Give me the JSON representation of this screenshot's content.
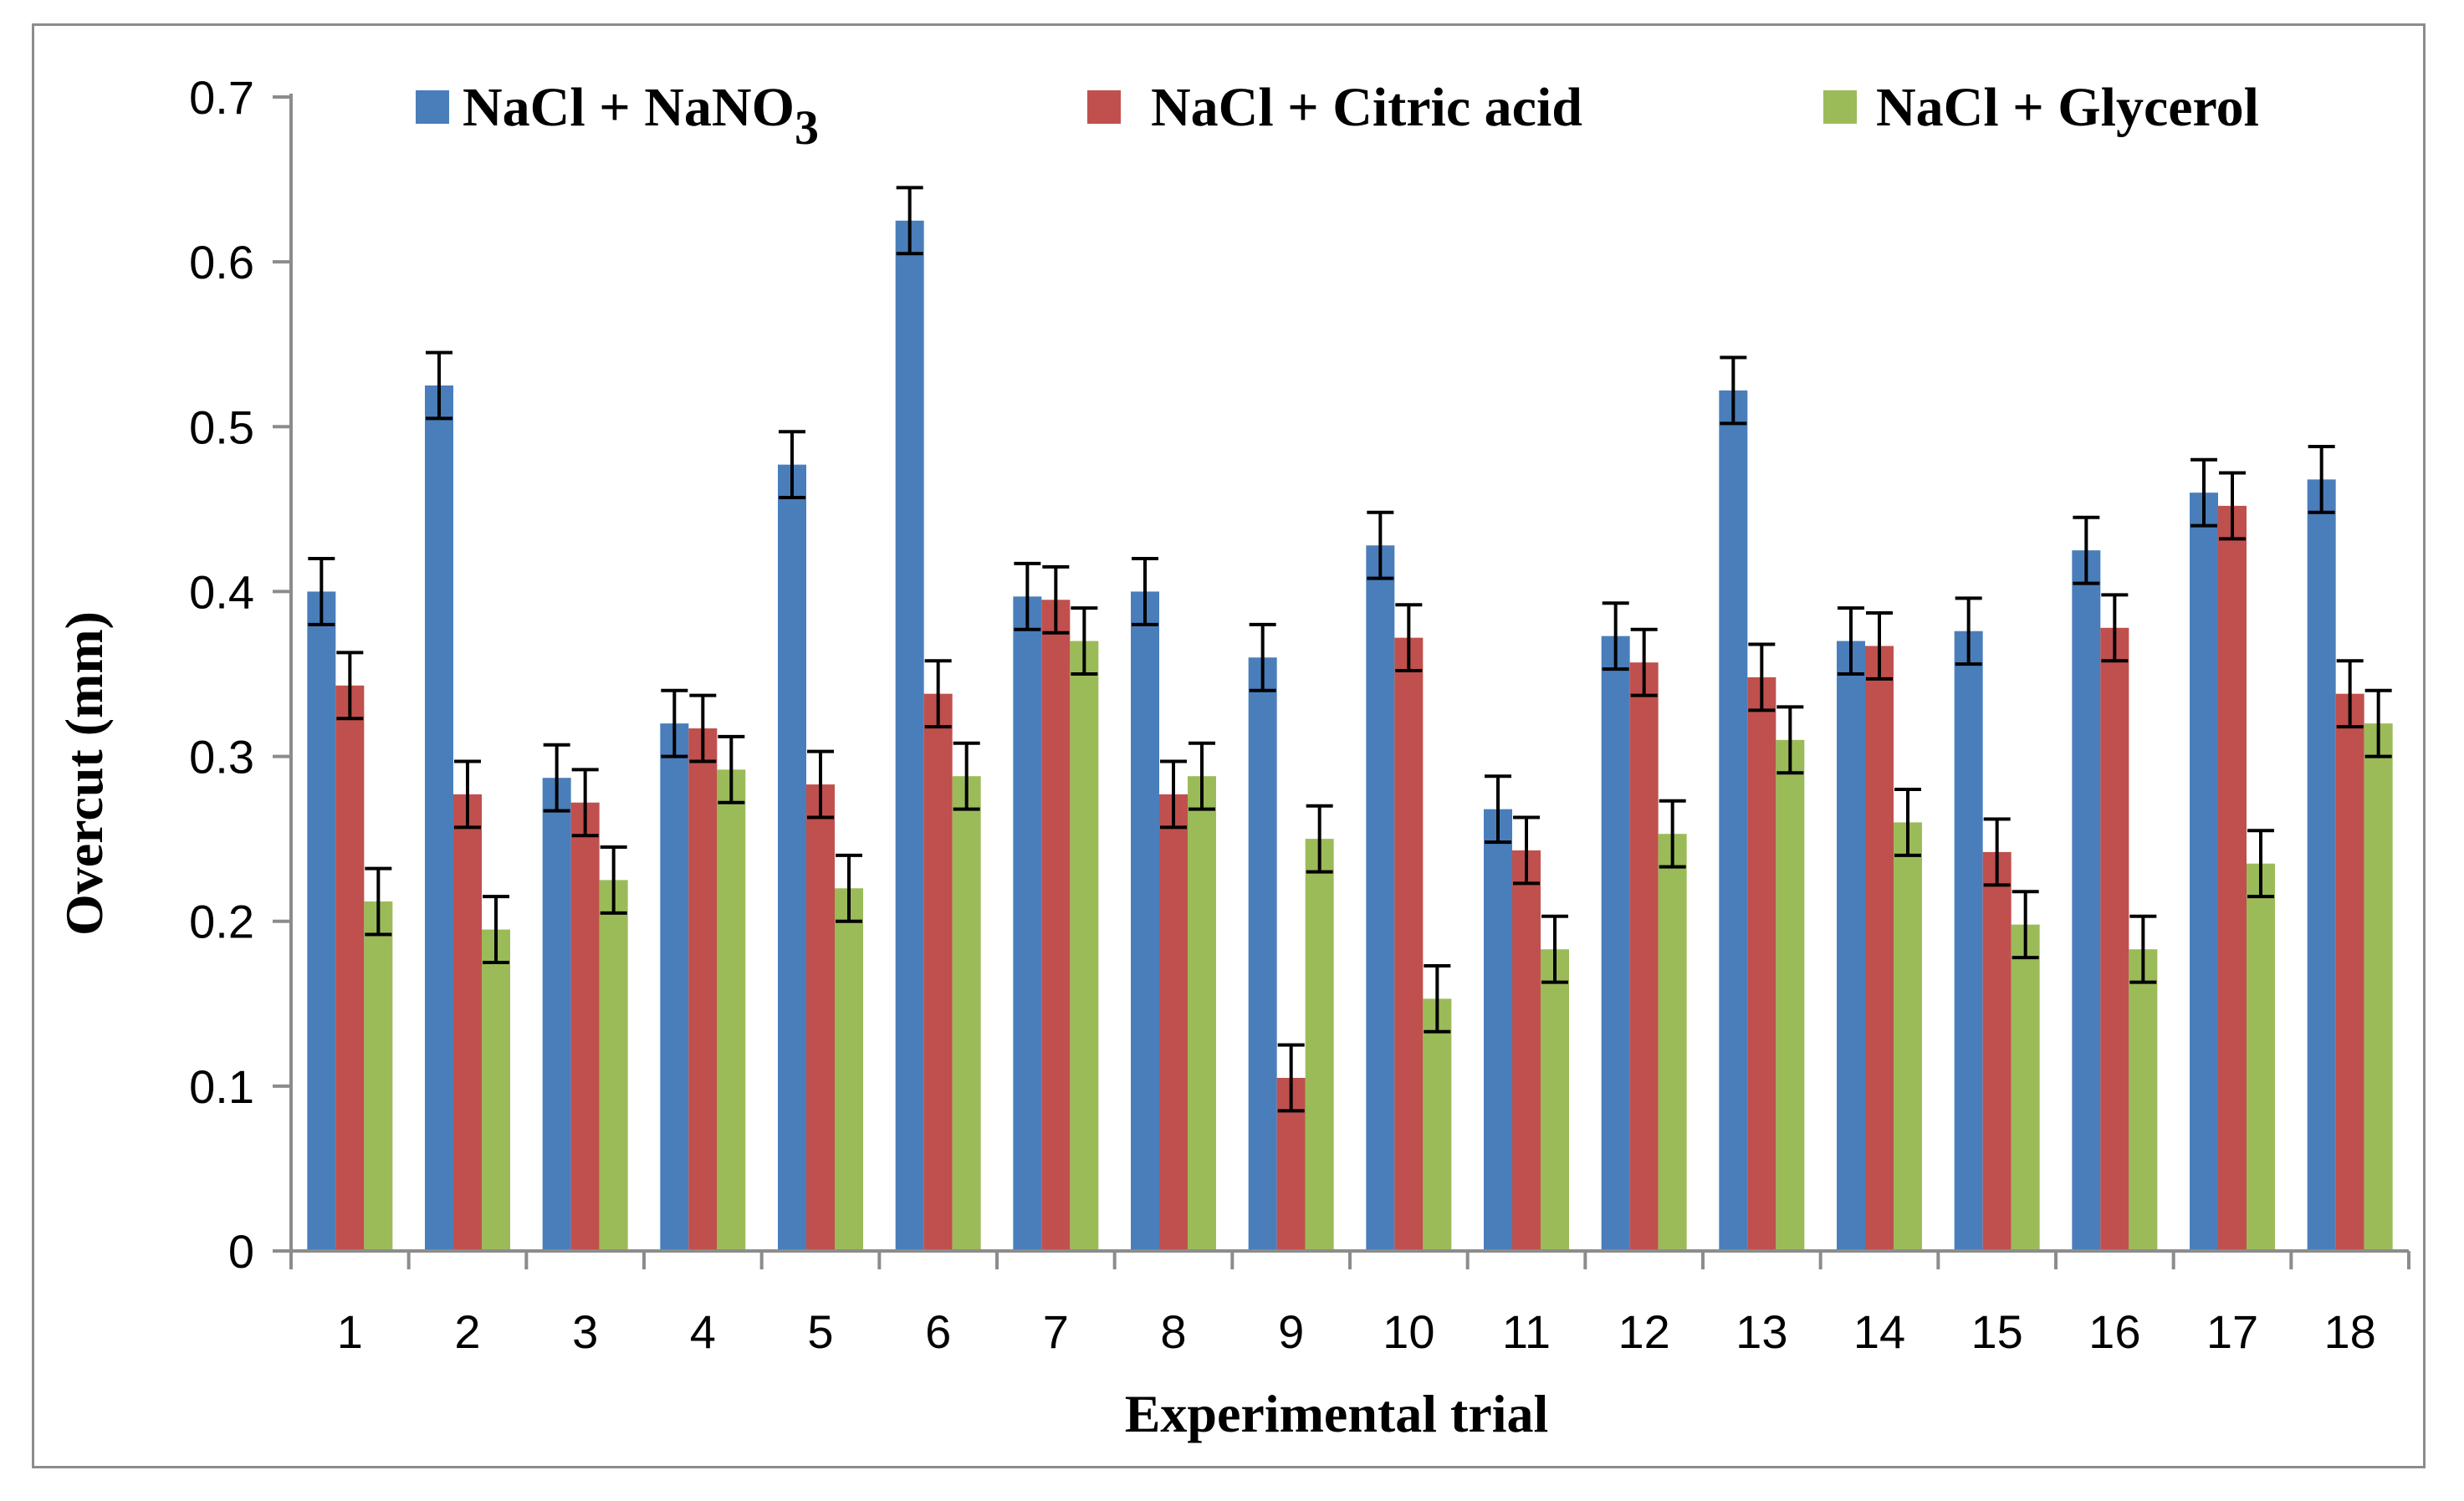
{
  "chart_data": {
    "type": "bar",
    "xlabel": "Experimental trial",
    "ylabel": "Overcut (mm)",
    "ylim": [
      0,
      0.7
    ],
    "yticks": [
      "0",
      "0.1",
      "0.2",
      "0.3",
      "0.4",
      "0.5",
      "0.6",
      "0.7"
    ],
    "categories": [
      "1",
      "2",
      "3",
      "4",
      "5",
      "6",
      "7",
      "8",
      "9",
      "10",
      "11",
      "12",
      "13",
      "14",
      "15",
      "16",
      "17",
      "18"
    ],
    "legend_position": "top",
    "grid": false,
    "error_bar": 0.02,
    "series": [
      {
        "name": "NaCl + NaNO",
        "subscript": "3",
        "color": "#4a7ebb",
        "values": [
          0.4,
          0.525,
          0.287,
          0.32,
          0.477,
          0.625,
          0.397,
          0.4,
          0.36,
          0.428,
          0.268,
          0.373,
          0.522,
          0.37,
          0.376,
          0.425,
          0.46,
          0.468
        ]
      },
      {
        "name": "NaCl + Citric acid",
        "color": "#c0504d",
        "values": [
          0.343,
          0.277,
          0.272,
          0.317,
          0.283,
          0.338,
          0.395,
          0.277,
          0.105,
          0.372,
          0.243,
          0.357,
          0.348,
          0.367,
          0.242,
          0.378,
          0.452,
          0.338
        ]
      },
      {
        "name": "NaCl + Glycerol",
        "color": "#9bbb59",
        "values": [
          0.212,
          0.195,
          0.225,
          0.292,
          0.22,
          0.288,
          0.37,
          0.288,
          0.25,
          0.153,
          0.183,
          0.253,
          0.31,
          0.26,
          0.198,
          0.183,
          0.235,
          0.32
        ]
      }
    ]
  }
}
